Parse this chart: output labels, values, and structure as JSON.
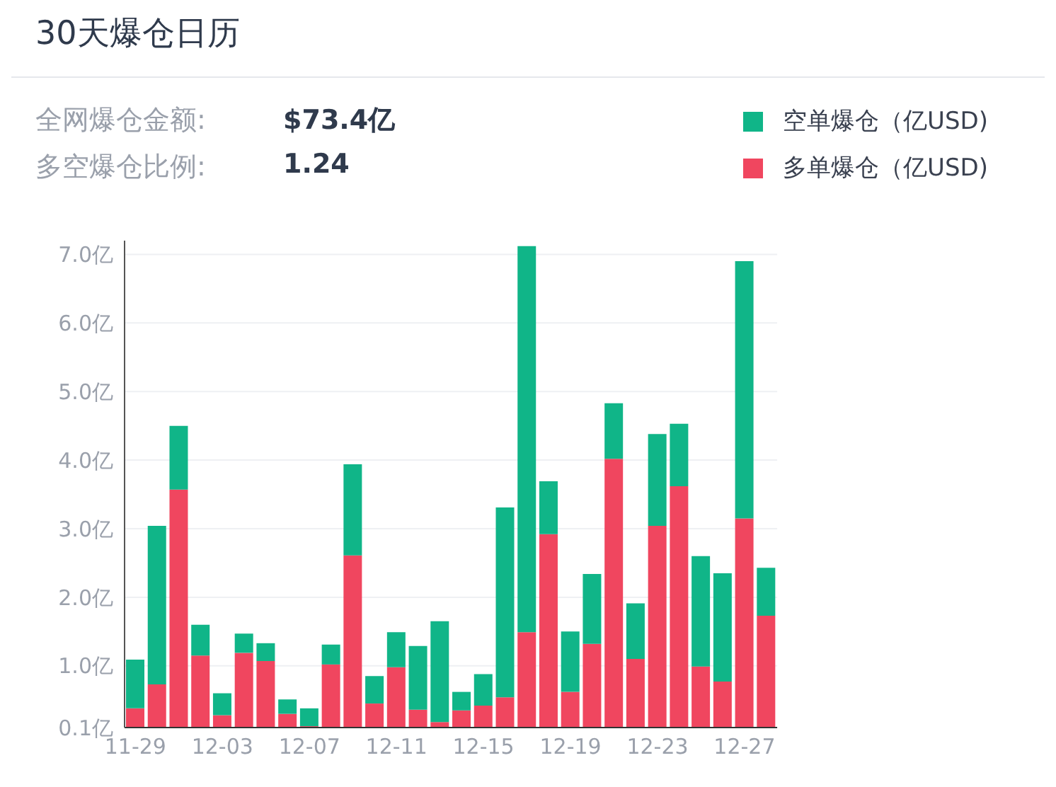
{
  "chart_data": {
    "type": "bar",
    "title": "30天爆仓日历",
    "stacked": true,
    "annotations": [
      "全网爆仓金额:",
      "$73.4亿",
      "多空爆仓比例:",
      "1.24"
    ],
    "categories": [
      "11-29",
      null,
      null,
      null,
      "12-03",
      null,
      null,
      null,
      "12-07",
      null,
      null,
      null,
      "12-11",
      null,
      null,
      null,
      "12-15",
      null,
      null,
      null,
      "12-19",
      null,
      null,
      null,
      "12-23",
      null,
      null,
      null,
      "12-27",
      null
    ],
    "series": [
      {
        "name": "多单爆仓（亿USD)",
        "color": "#f0465f",
        "values": [
          0.38,
          0.73,
          3.57,
          1.15,
          0.28,
          1.19,
          1.07,
          0.3,
          0.12,
          1.02,
          2.61,
          0.45,
          0.98,
          0.36,
          0.18,
          0.35,
          0.42,
          0.54,
          1.49,
          2.92,
          0.62,
          1.32,
          4.02,
          1.1,
          3.04,
          3.62,
          0.99,
          0.77,
          3.15,
          1.73
        ]
      },
      {
        "name": "空单爆仓（亿USD)",
        "color": "#10b588",
        "values": [
          0.71,
          2.31,
          0.93,
          0.45,
          0.32,
          0.28,
          0.26,
          0.21,
          0.26,
          0.29,
          1.33,
          0.4,
          0.51,
          0.93,
          1.47,
          0.27,
          0.46,
          2.77,
          5.63,
          0.77,
          0.88,
          1.02,
          0.81,
          0.81,
          1.34,
          0.91,
          1.61,
          1.58,
          3.75,
          0.7
        ]
      }
    ],
    "ylim": [
      0.1,
      7.2
    ],
    "yticks": [
      {
        "value": 0.1,
        "label": "0.1亿"
      },
      {
        "value": 1,
        "label": "1.0亿"
      },
      {
        "value": 2,
        "label": "2.0亿"
      },
      {
        "value": 3,
        "label": "3.0亿"
      },
      {
        "value": 4,
        "label": "4.0亿"
      },
      {
        "value": 5,
        "label": "5.0亿"
      },
      {
        "value": 6,
        "label": "6.0亿"
      },
      {
        "value": 7,
        "label": "7.0亿"
      }
    ],
    "grid": "y",
    "legend": "top right"
  }
}
